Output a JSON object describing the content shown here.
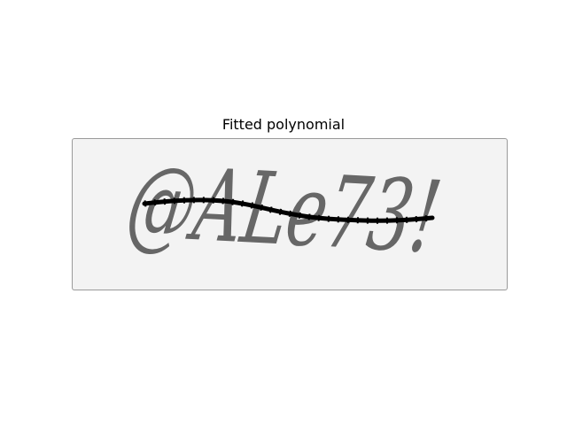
{
  "figure": {
    "title": "Fitted polynomial"
  },
  "captcha": {
    "text": "@ALe73!",
    "glyph_color": "#5f5f5f",
    "background_color": "#f3f3f3"
  },
  "fit_line": {
    "color": "#000000"
  }
}
